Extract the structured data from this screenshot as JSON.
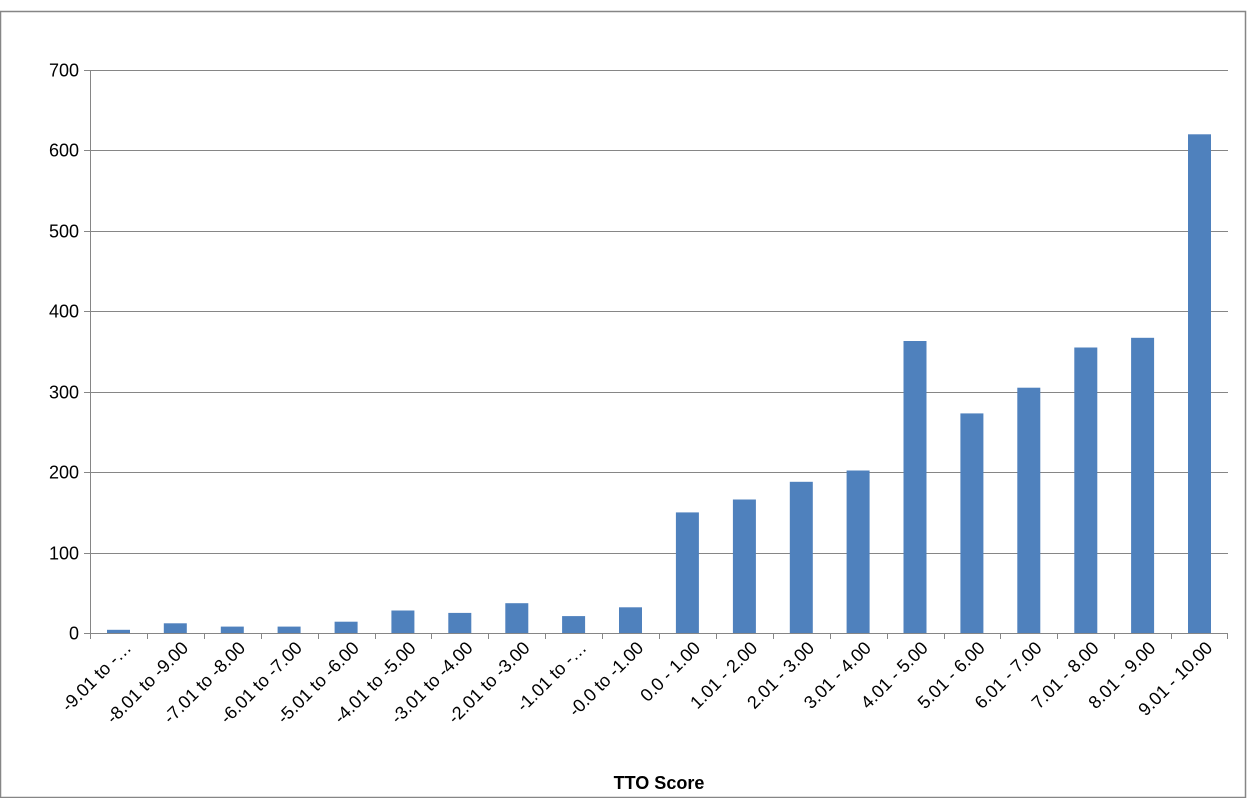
{
  "chart_data": {
    "type": "bar",
    "title": "",
    "xlabel": "TTO Score",
    "ylabel": "",
    "categories": [
      "-9.01 to -…",
      "-8.01 to -9.00",
      "-7.01 to -8.00",
      "-6.01 to -7.00",
      "-5.01 to -6.00",
      "-4.01 to -5.00",
      "-3.01 to -4.00",
      "-2.01 to -3.00",
      "-1.01 to -…",
      "-0.0 to -1.00",
      "0.0 - 1.00",
      "1.01 - 2.00",
      "2.01 - 3.00",
      "3.01 - 4.00",
      "4.01 - 5.00",
      "5.01 - 6.00",
      "6.01 - 7.00",
      "7.01 - 8.00",
      "8.01 - 9.00",
      "9.01 - 10.00"
    ],
    "values": [
      4,
      12,
      8,
      8,
      14,
      28,
      25,
      37,
      21,
      32,
      150,
      166,
      188,
      202,
      363,
      273,
      305,
      355,
      367,
      620
    ],
    "ylim": [
      0,
      700
    ],
    "yticks": [
      0,
      100,
      200,
      300,
      400,
      500,
      600,
      700
    ],
    "grid": true,
    "legend": "none",
    "colors": {
      "bar": "#4F81BD",
      "grid": "#868686",
      "axis": "#868686",
      "frame": "#868686"
    }
  }
}
